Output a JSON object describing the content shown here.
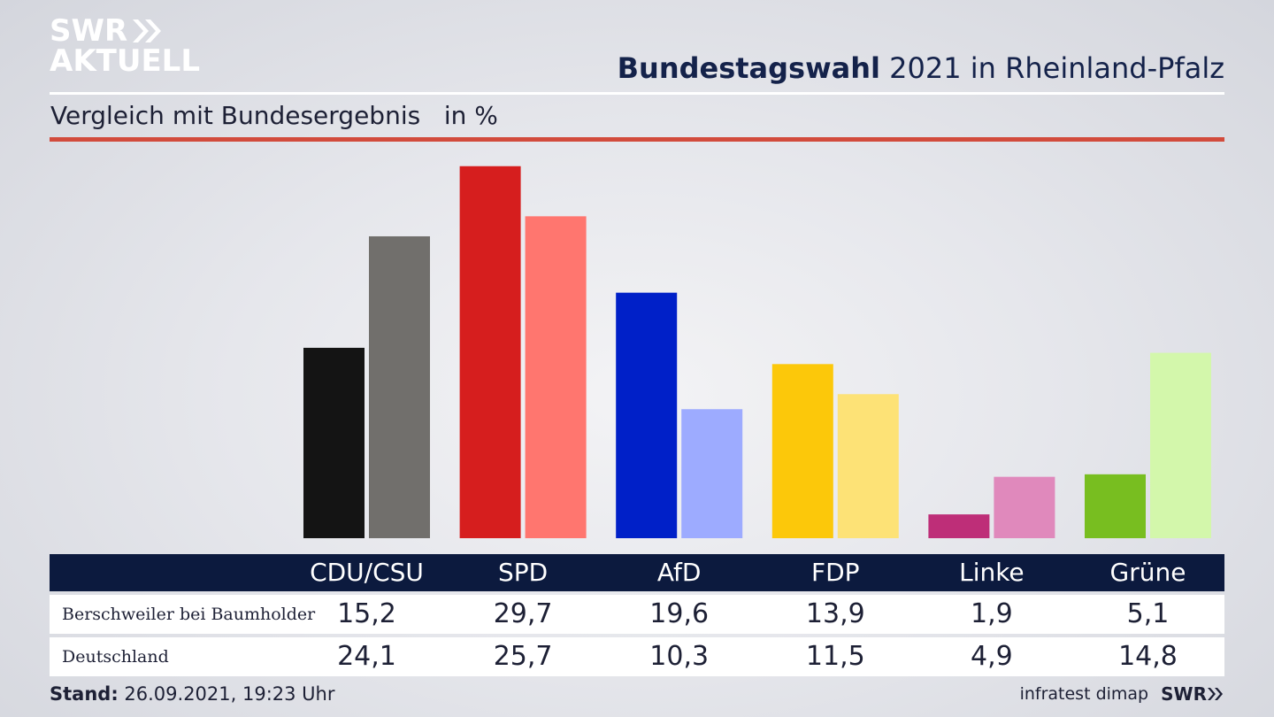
{
  "brand": {
    "line1": "SWR",
    "line2": "AKTUELL",
    "footer_logo": "SWR"
  },
  "header": {
    "title_bold": "Bundestagswahl",
    "title_rest": " 2021 in Rheinland-Pfalz",
    "subtitle": "Vergleich mit Bundesergebnis   in %"
  },
  "colors": {
    "primary": [
      "#141414",
      "#d61e1e",
      "#0020c8",
      "#fcc80a",
      "#be2e78",
      "#78be20"
    ],
    "secondary": [
      "#716f6c",
      "#ff766f",
      "#9dabff",
      "#fde276",
      "#e089bc",
      "#d3f7ab"
    ]
  },
  "chart_data": {
    "type": "bar",
    "categories": [
      "CDU/CSU",
      "SPD",
      "AfD",
      "FDP",
      "Linke",
      "Grüne"
    ],
    "series": [
      {
        "name": "Berschweiler bei Baumholder",
        "values": [
          15.2,
          29.7,
          19.6,
          13.9,
          1.9,
          5.1
        ]
      },
      {
        "name": "Deutschland",
        "values": [
          24.1,
          25.7,
          10.3,
          11.5,
          4.9,
          14.8
        ]
      }
    ]
  },
  "table": {
    "headers": [
      "CDU/CSU",
      "SPD",
      "AfD",
      "FDP",
      "Linke",
      "Grüne"
    ],
    "rows": [
      {
        "label": "Berschweiler bei Baumholder",
        "values": [
          "15,2",
          "29,7",
          "19,6",
          "13,9",
          "1,9",
          "5,1"
        ]
      },
      {
        "label": "Deutschland",
        "values": [
          "24,1",
          "25,7",
          "10,3",
          "11,5",
          "4,9",
          "14,8"
        ]
      }
    ]
  },
  "footer": {
    "stand_label": "Stand:",
    "stand_value": " 26.09.2021, 19:23 Uhr",
    "source": "infratest dimap"
  }
}
